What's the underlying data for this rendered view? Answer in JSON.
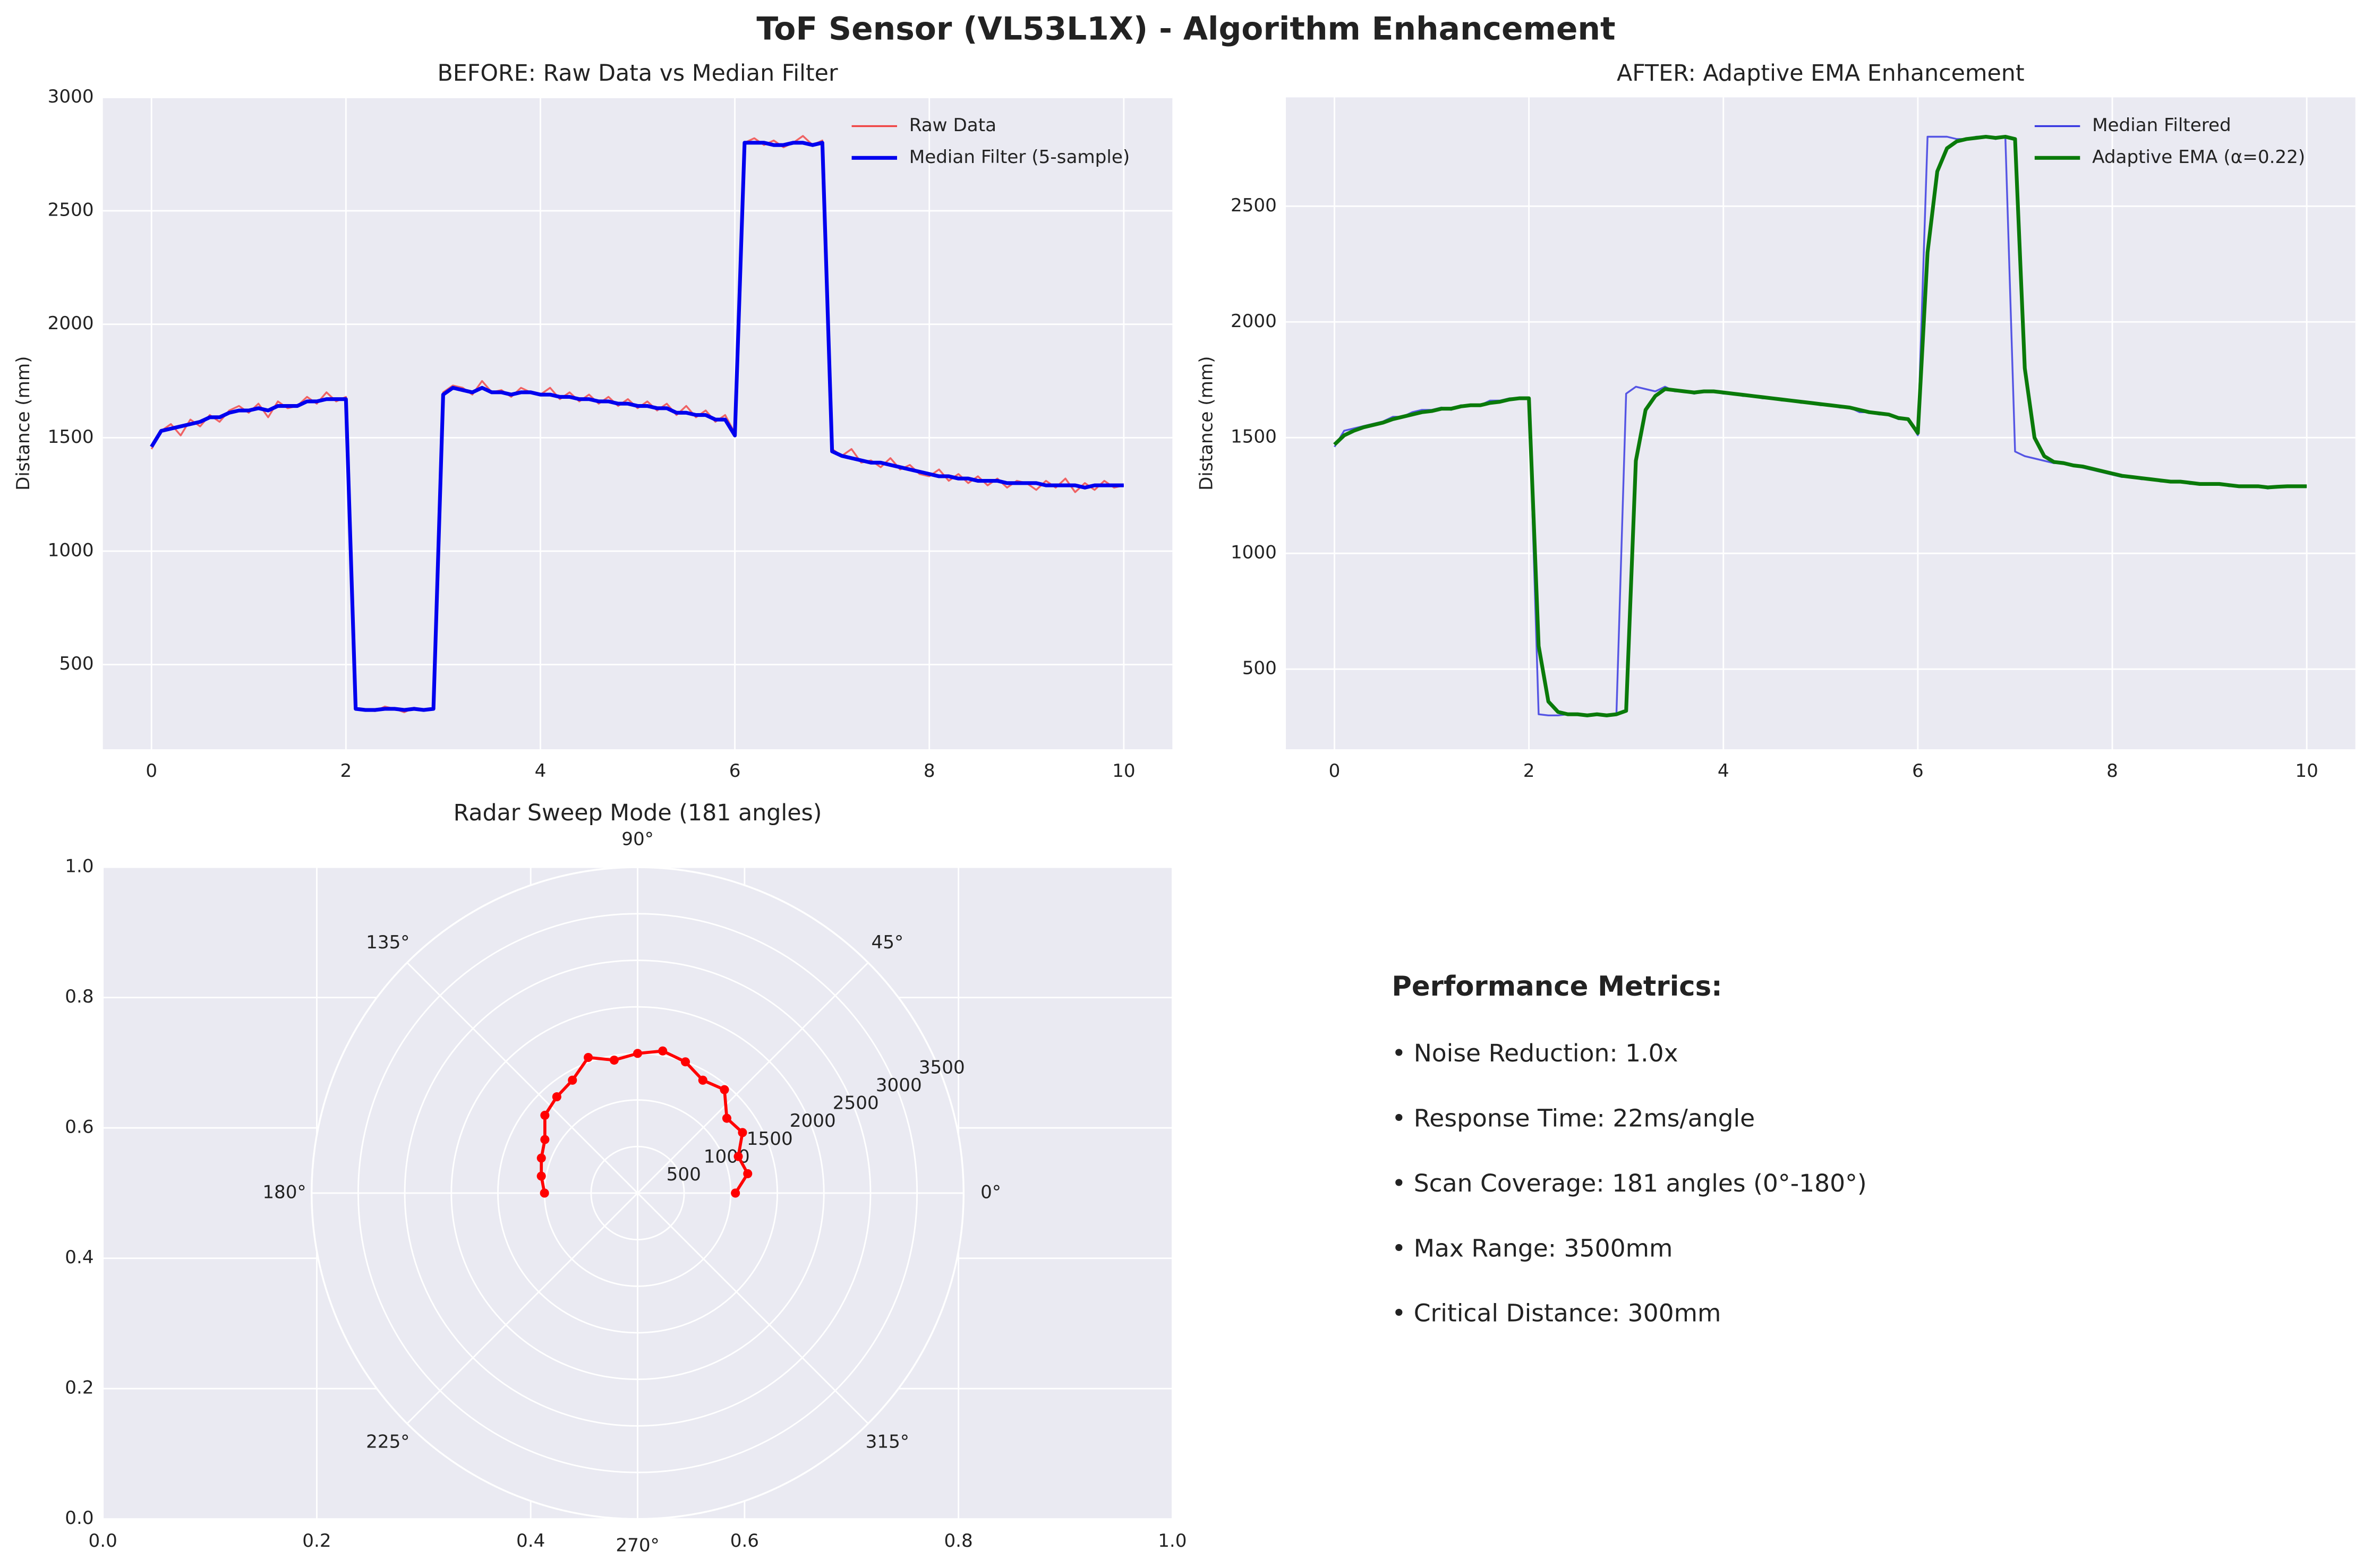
{
  "title": "ToF Sensor (VL53L1X) - Algorithm Enhancement",
  "chart_data": [
    {
      "type": "line",
      "title": "BEFORE: Raw Data vs Median Filter",
      "ylabel": "Distance (mm)",
      "xlim": [
        -0.5,
        10.5
      ],
      "ylim": [
        127,
        3000
      ],
      "xticks": [
        0,
        2,
        4,
        6,
        8,
        10
      ],
      "yticks": [
        500,
        1000,
        1500,
        2000,
        2500,
        3000
      ],
      "grid": true,
      "legend": "upper right",
      "x": [
        0,
        0.1,
        0.2,
        0.3,
        0.4,
        0.5,
        0.6,
        0.7,
        0.8,
        0.9,
        1,
        1.1,
        1.2,
        1.3,
        1.4,
        1.5,
        1.6,
        1.7,
        1.8,
        1.9,
        2,
        2.1,
        2.2,
        2.3,
        2.4,
        2.5,
        2.6,
        2.7,
        2.8,
        2.9,
        3,
        3.1,
        3.2,
        3.3,
        3.4,
        3.5,
        3.6,
        3.7,
        3.8,
        3.9,
        4,
        4.1,
        4.2,
        4.3,
        4.4,
        4.5,
        4.6,
        4.7,
        4.8,
        4.9,
        5,
        5.1,
        5.2,
        5.3,
        5.4,
        5.5,
        5.6,
        5.7,
        5.8,
        5.9,
        6,
        6.1,
        6.2,
        6.3,
        6.4,
        6.5,
        6.6,
        6.7,
        6.8,
        6.9,
        7,
        7.1,
        7.2,
        7.3,
        7.4,
        7.5,
        7.6,
        7.7,
        7.8,
        7.9,
        8,
        8.1,
        8.2,
        8.3,
        8.4,
        8.5,
        8.6,
        8.7,
        8.8,
        8.9,
        9,
        9.1,
        9.2,
        9.3,
        9.4,
        9.5,
        9.6,
        9.7,
        9.8,
        9.9,
        10
      ],
      "series": [
        {
          "name": "Raw Data",
          "color": "#f04040",
          "values": [
            1450,
            1530,
            1560,
            1510,
            1580,
            1550,
            1600,
            1570,
            1620,
            1640,
            1610,
            1650,
            1590,
            1660,
            1630,
            1640,
            1680,
            1650,
            1700,
            1660,
            1680,
            310,
            300,
            295,
            315,
            305,
            290,
            310,
            300,
            305,
            1700,
            1730,
            1720,
            1690,
            1750,
            1700,
            1710,
            1680,
            1720,
            1700,
            1690,
            1720,
            1670,
            1700,
            1660,
            1690,
            1650,
            1680,
            1640,
            1670,
            1630,
            1660,
            1620,
            1650,
            1600,
            1640,
            1590,
            1620,
            1570,
            1600,
            1520,
            2800,
            2820,
            2790,
            2810,
            2780,
            2800,
            2830,
            2790,
            2810,
            1450,
            1420,
            1450,
            1390,
            1400,
            1370,
            1410,
            1360,
            1380,
            1340,
            1330,
            1360,
            1310,
            1340,
            1300,
            1330,
            1290,
            1320,
            1280,
            1310,
            1300,
            1270,
            1310,
            1280,
            1320,
            1260,
            1300,
            1270,
            1310,
            1280,
            1290
          ]
        },
        {
          "name": "Median Filter (5-sample)",
          "color": "#0000ee",
          "values": [
            1460,
            1530,
            1540,
            1550,
            1560,
            1570,
            1590,
            1590,
            1610,
            1620,
            1620,
            1630,
            1620,
            1640,
            1640,
            1640,
            1660,
            1660,
            1670,
            1670,
            1670,
            305,
            300,
            300,
            305,
            305,
            300,
            305,
            300,
            305,
            1690,
            1720,
            1710,
            1700,
            1720,
            1700,
            1700,
            1690,
            1700,
            1700,
            1690,
            1690,
            1680,
            1680,
            1670,
            1670,
            1660,
            1660,
            1650,
            1650,
            1640,
            1640,
            1630,
            1630,
            1610,
            1610,
            1600,
            1600,
            1580,
            1580,
            1510,
            2800,
            2800,
            2800,
            2790,
            2790,
            2800,
            2800,
            2790,
            2800,
            1440,
            1420,
            1410,
            1400,
            1390,
            1390,
            1380,
            1370,
            1360,
            1350,
            1340,
            1330,
            1330,
            1320,
            1320,
            1310,
            1310,
            1310,
            1300,
            1300,
            1300,
            1300,
            1290,
            1290,
            1290,
            1290,
            1280,
            1290,
            1290,
            1290,
            1290
          ]
        }
      ]
    },
    {
      "type": "line",
      "title": "AFTER: Adaptive EMA Enhancement",
      "ylabel": "Distance (mm)",
      "xlim": [
        -0.5,
        10.5
      ],
      "ylim": [
        154,
        2970
      ],
      "xticks": [
        0,
        2,
        4,
        6,
        8,
        10
      ],
      "yticks": [
        500,
        1000,
        1500,
        2000,
        2500
      ],
      "grid": true,
      "legend": "upper right",
      "x": [
        0,
        0.1,
        0.2,
        0.3,
        0.4,
        0.5,
        0.6,
        0.7,
        0.8,
        0.9,
        1,
        1.1,
        1.2,
        1.3,
        1.4,
        1.5,
        1.6,
        1.7,
        1.8,
        1.9,
        2,
        2.1,
        2.2,
        2.3,
        2.4,
        2.5,
        2.6,
        2.7,
        2.8,
        2.9,
        3,
        3.1,
        3.2,
        3.3,
        3.4,
        3.5,
        3.6,
        3.7,
        3.8,
        3.9,
        4,
        4.1,
        4.2,
        4.3,
        4.4,
        4.5,
        4.6,
        4.7,
        4.8,
        4.9,
        5,
        5.1,
        5.2,
        5.3,
        5.4,
        5.5,
        5.6,
        5.7,
        5.8,
        5.9,
        6,
        6.1,
        6.2,
        6.3,
        6.4,
        6.5,
        6.6,
        6.7,
        6.8,
        6.9,
        7,
        7.1,
        7.2,
        7.3,
        7.4,
        7.5,
        7.6,
        7.7,
        7.8,
        7.9,
        8,
        8.1,
        8.2,
        8.3,
        8.4,
        8.5,
        8.6,
        8.7,
        8.8,
        8.9,
        9,
        9.1,
        9.2,
        9.3,
        9.4,
        9.5,
        9.6,
        9.7,
        9.8,
        9.9,
        10
      ],
      "series": [
        {
          "name": "Median Filtered",
          "color": "#3030e0",
          "values": [
            1460,
            1530,
            1540,
            1550,
            1560,
            1570,
            1590,
            1590,
            1610,
            1620,
            1620,
            1630,
            1620,
            1640,
            1640,
            1640,
            1660,
            1660,
            1670,
            1670,
            1670,
            305,
            300,
            300,
            305,
            305,
            300,
            305,
            300,
            305,
            1690,
            1720,
            1710,
            1700,
            1720,
            1700,
            1700,
            1690,
            1700,
            1700,
            1690,
            1690,
            1680,
            1680,
            1670,
            1670,
            1660,
            1660,
            1650,
            1650,
            1640,
            1640,
            1630,
            1630,
            1610,
            1610,
            1600,
            1600,
            1580,
            1580,
            1510,
            2800,
            2800,
            2800,
            2790,
            2790,
            2800,
            2800,
            2790,
            2800,
            1440,
            1420,
            1410,
            1400,
            1390,
            1390,
            1380,
            1370,
            1360,
            1350,
            1340,
            1330,
            1330,
            1320,
            1320,
            1310,
            1310,
            1310,
            1300,
            1300,
            1300,
            1300,
            1290,
            1290,
            1290,
            1290,
            1280,
            1290,
            1290,
            1290,
            1290
          ]
        },
        {
          "name": "Adaptive EMA (α=0.22)",
          "color": "#0a7a0a",
          "values": [
            1470,
            1510,
            1530,
            1545,
            1555,
            1565,
            1580,
            1590,
            1600,
            1610,
            1615,
            1625,
            1625,
            1635,
            1640,
            1640,
            1650,
            1655,
            1665,
            1670,
            1670,
            600,
            360,
            315,
            305,
            305,
            300,
            305,
            300,
            305,
            320,
            1400,
            1620,
            1680,
            1710,
            1705,
            1700,
            1695,
            1700,
            1700,
            1695,
            1690,
            1685,
            1680,
            1675,
            1670,
            1665,
            1660,
            1655,
            1650,
            1645,
            1640,
            1635,
            1630,
            1620,
            1610,
            1605,
            1600,
            1585,
            1580,
            1520,
            2300,
            2650,
            2750,
            2780,
            2790,
            2795,
            2800,
            2795,
            2800,
            2790,
            1800,
            1500,
            1420,
            1395,
            1390,
            1380,
            1375,
            1365,
            1355,
            1345,
            1335,
            1330,
            1325,
            1320,
            1315,
            1310,
            1310,
            1305,
            1300,
            1300,
            1300,
            1295,
            1290,
            1290,
            1290,
            1285,
            1288,
            1290,
            1290,
            1290
          ]
        }
      ]
    },
    {
      "type": "polar",
      "title": "Radar Sweep Mode (181 angles)",
      "xlim": [
        0,
        1
      ],
      "ylim": [
        0,
        1
      ],
      "xticks": [
        {
          "value": 0,
          "label": "0.0"
        },
        {
          "value": 0.2,
          "label": "0.2"
        },
        {
          "value": 0.4,
          "label": "0.4"
        },
        {
          "value": 0.6,
          "label": "0.6"
        },
        {
          "value": 0.8,
          "label": "0.8"
        },
        {
          "value": 1,
          "label": "1.0"
        }
      ],
      "yticks": [
        {
          "value": 0,
          "label": "0.0"
        },
        {
          "value": 0.2,
          "label": "0.2"
        },
        {
          "value": 0.4,
          "label": "0.4"
        },
        {
          "value": 0.6,
          "label": "0.6"
        },
        {
          "value": 0.8,
          "label": "0.8"
        },
        {
          "value": 1,
          "label": "1.0"
        }
      ],
      "rlim": [
        0,
        3500
      ],
      "rticks": [
        500,
        1000,
        1500,
        2000,
        2500,
        3000,
        3500
      ],
      "thetaticks": [
        {
          "value": 0,
          "label": "0°"
        },
        {
          "value": 45,
          "label": "45°"
        },
        {
          "value": 90,
          "label": "90°"
        },
        {
          "value": 135,
          "label": "135°"
        },
        {
          "value": 180,
          "label": "180°"
        },
        {
          "value": 225,
          "label": "225°"
        },
        {
          "value": 270,
          "label": "270°"
        },
        {
          "value": 315,
          "label": "315°"
        }
      ],
      "grid": true,
      "theta": [
        0,
        10,
        20,
        30,
        40,
        50,
        60,
        70,
        80,
        90,
        100,
        110,
        120,
        130,
        140,
        150,
        160,
        170,
        180
      ],
      "series": [
        {
          "color": "#ff0000",
          "values": [
            1050,
            1200,
            1150,
            1300,
            1250,
            1450,
            1400,
            1500,
            1550,
            1500,
            1450,
            1550,
            1400,
            1350,
            1300,
            1150,
            1100,
            1050,
            1000
          ]
        }
      ]
    }
  ],
  "metrics": {
    "title": "Performance Metrics:",
    "items": [
      "• Noise Reduction: 1.0x",
      "• Response Time: 22ms/angle",
      "• Scan Coverage: 181 angles (0°-180°)",
      "• Max Range: 3500mm",
      "• Critical Distance: 300mm"
    ]
  }
}
